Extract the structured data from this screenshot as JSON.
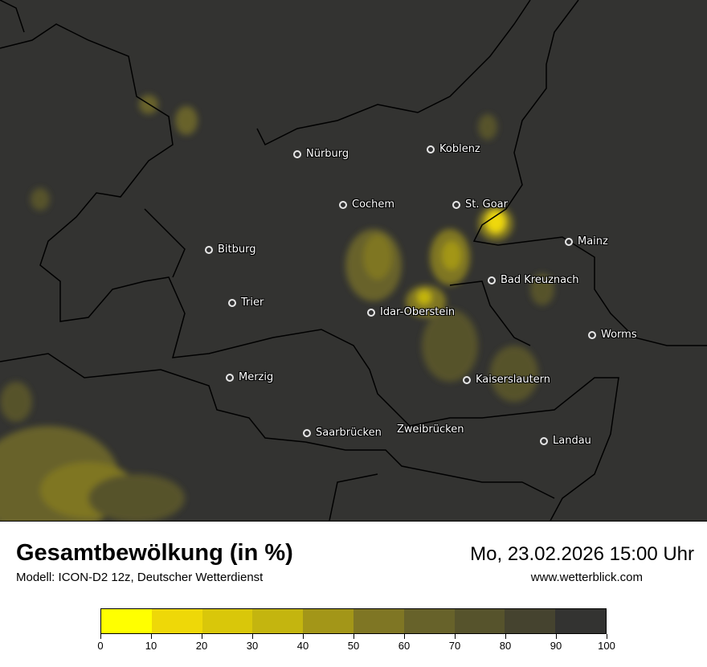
{
  "map": {
    "background": "#333331",
    "cities": [
      {
        "name": "Nürburg"
      },
      {
        "name": "Koblenz"
      },
      {
        "name": "Cochem"
      },
      {
        "name": "St. Goar"
      },
      {
        "name": "Bitburg"
      },
      {
        "name": "Mainz"
      },
      {
        "name": "Bad Kreuznach"
      },
      {
        "name": "Trier"
      },
      {
        "name": "Idar-Oberstein"
      },
      {
        "name": "Worms"
      },
      {
        "name": "Merzig"
      },
      {
        "name": "Kaiserslautern"
      },
      {
        "name": "Saarbrücken"
      },
      {
        "name": "Zweibrücken"
      },
      {
        "name": "Landau"
      }
    ]
  },
  "footer": {
    "title": "Gesamtbewölkung (in %)",
    "model": "Modell: ICON-D2 12z, Deutscher Wetterdienst",
    "datetime": "Mo, 23.02.2026 15:00 Uhr",
    "website": "www.wetterblick.com"
  },
  "legend": {
    "colors": [
      "#ffff00",
      "#eed808",
      "#d9c70a",
      "#c4b50f",
      "#a39618",
      "#7f7624",
      "#67622a",
      "#56532c",
      "#45432f",
      "#333331"
    ],
    "ticks": [
      "0",
      "10",
      "20",
      "30",
      "40",
      "50",
      "60",
      "70",
      "80",
      "90",
      "100"
    ]
  }
}
